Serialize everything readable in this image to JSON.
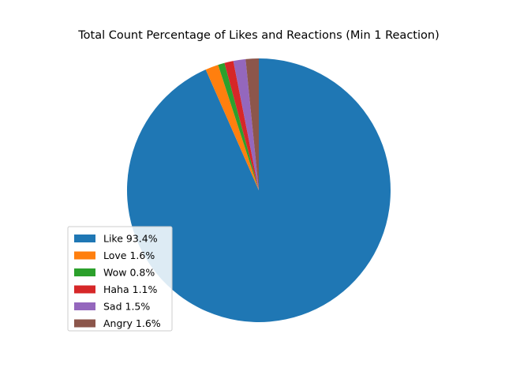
{
  "chart_data": {
    "type": "pie",
    "title": "Total Count Percentage of Likes and Reactions (Min 1 Reaction)",
    "start_angle_deg": 90,
    "direction": "clockwise",
    "legend_position": "lower-left",
    "slices": [
      {
        "label": "Like 93.4%",
        "value": 93.4,
        "color": "#1f77b4"
      },
      {
        "label": "Love 1.6%",
        "value": 1.6,
        "color": "#ff7f0e"
      },
      {
        "label": "Wow 0.8%",
        "value": 0.8,
        "color": "#2ca02c"
      },
      {
        "label": "Haha 1.1%",
        "value": 1.1,
        "color": "#d62728"
      },
      {
        "label": "Sad 1.5%",
        "value": 1.5,
        "color": "#9467bd"
      },
      {
        "label": "Angry 1.6%",
        "value": 1.6,
        "color": "#8c564b"
      }
    ]
  }
}
